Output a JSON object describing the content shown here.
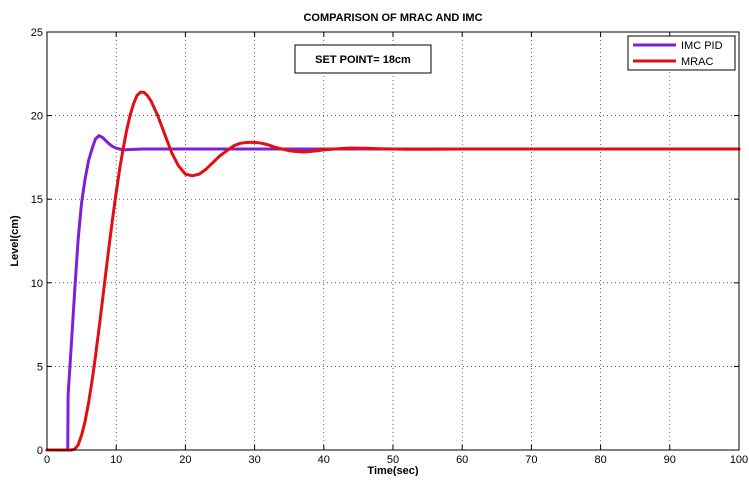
{
  "chart_data": {
    "type": "line",
    "title": "COMPARISON OF MRAC AND IMC",
    "xlabel": "Time(sec)",
    "ylabel": "Level(cm)",
    "xlim": [
      0,
      100
    ],
    "ylim": [
      0,
      25
    ],
    "xticks": [
      0,
      10,
      20,
      30,
      40,
      50,
      60,
      70,
      80,
      90,
      100
    ],
    "yticks": [
      0,
      5,
      10,
      15,
      20,
      25
    ],
    "grid": true,
    "legend_position": "top-right",
    "annotation": "SET POINT= 18cm",
    "series": [
      {
        "name": "IMC PID",
        "color": "#7f1fd8",
        "x": [
          0,
          3,
          3.05,
          3.5,
          4,
          4.5,
          5,
          5.5,
          6,
          6.5,
          7,
          7.5,
          8,
          8.5,
          9,
          9.5,
          10,
          11,
          12,
          14,
          16,
          20,
          30,
          40,
          50,
          60,
          70,
          80,
          90,
          100
        ],
        "y": [
          0,
          0,
          3.3,
          6.2,
          9.5,
          12.6,
          14.8,
          16.2,
          17.3,
          18.0,
          18.6,
          18.8,
          18.7,
          18.5,
          18.3,
          18.15,
          18.05,
          17.95,
          17.97,
          18.0,
          18.0,
          18.0,
          18.0,
          18.0,
          18.0,
          18.0,
          18.0,
          18.0,
          18.0,
          18.0
        ]
      },
      {
        "name": "MRAC",
        "color": "#e01010",
        "x": [
          0,
          3,
          3.5,
          4,
          4.5,
          5,
          5.5,
          6,
          6.5,
          7,
          7.5,
          8,
          8.5,
          9,
          9.5,
          10,
          10.5,
          11,
          11.5,
          12,
          12.5,
          13,
          13.5,
          14,
          14.5,
          15,
          16,
          17,
          18,
          19,
          20,
          21,
          22,
          23,
          24,
          25,
          26,
          27,
          28,
          29,
          30,
          31,
          32,
          33,
          34,
          35,
          36,
          37,
          38,
          39,
          40,
          42,
          44,
          46,
          48,
          50,
          52,
          55,
          60,
          70,
          80,
          90,
          100
        ],
        "y": [
          0,
          0,
          0,
          0.05,
          0.3,
          0.9,
          1.7,
          2.8,
          4.1,
          5.6,
          7.2,
          8.9,
          10.6,
          12.3,
          13.9,
          15.4,
          16.8,
          18.0,
          19.1,
          20.0,
          20.7,
          21.2,
          21.4,
          21.4,
          21.2,
          20.9,
          20.0,
          18.9,
          17.8,
          17.0,
          16.5,
          16.4,
          16.5,
          16.8,
          17.2,
          17.6,
          17.9,
          18.2,
          18.35,
          18.4,
          18.4,
          18.35,
          18.25,
          18.1,
          18.0,
          17.9,
          17.85,
          17.82,
          17.85,
          17.9,
          17.95,
          18.02,
          18.06,
          18.05,
          18.02,
          18.0,
          17.99,
          17.99,
          18.0,
          18.0,
          18.0,
          18.0,
          18.0
        ]
      }
    ]
  }
}
